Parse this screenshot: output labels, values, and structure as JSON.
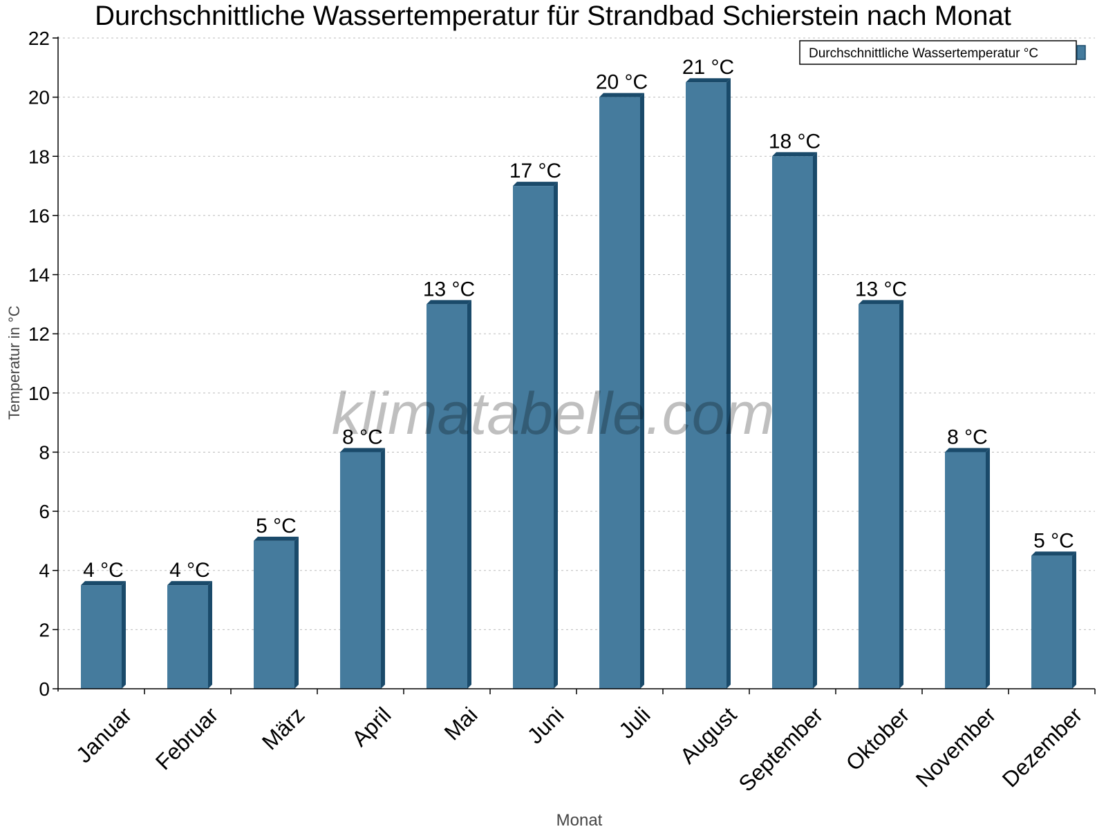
{
  "chart_data": {
    "type": "bar",
    "title": "Durchschnittliche Wassertemperatur für Strandbad Schierstein nach Monat",
    "xlabel": "Monat",
    "ylabel": "Temperatur in °C",
    "ylim": [
      0,
      22
    ],
    "yticks": [
      0,
      2,
      4,
      6,
      8,
      10,
      12,
      14,
      16,
      18,
      20,
      22
    ],
    "grid": true,
    "legend_position": "top-right",
    "categories": [
      "Januar",
      "Februar",
      "März",
      "April",
      "Mai",
      "Juni",
      "Juli",
      "August",
      "September",
      "Oktober",
      "November",
      "Dezember"
    ],
    "series": [
      {
        "name": "Durchschnittliche Wassertemperatur °C",
        "color": "#457b9d",
        "values": [
          3.5,
          3.5,
          5,
          8,
          13,
          17,
          20,
          20.5,
          18,
          13,
          8,
          4.5
        ],
        "data_labels": [
          "4 °C",
          "4 °C",
          "5 °C",
          "8 °C",
          "13 °C",
          "17 °C",
          "20 °C",
          "21 °C",
          "18 °C",
          "13 °C",
          "8 °C",
          "5 °C"
        ]
      }
    ],
    "watermark": "klimatabelle.com"
  }
}
